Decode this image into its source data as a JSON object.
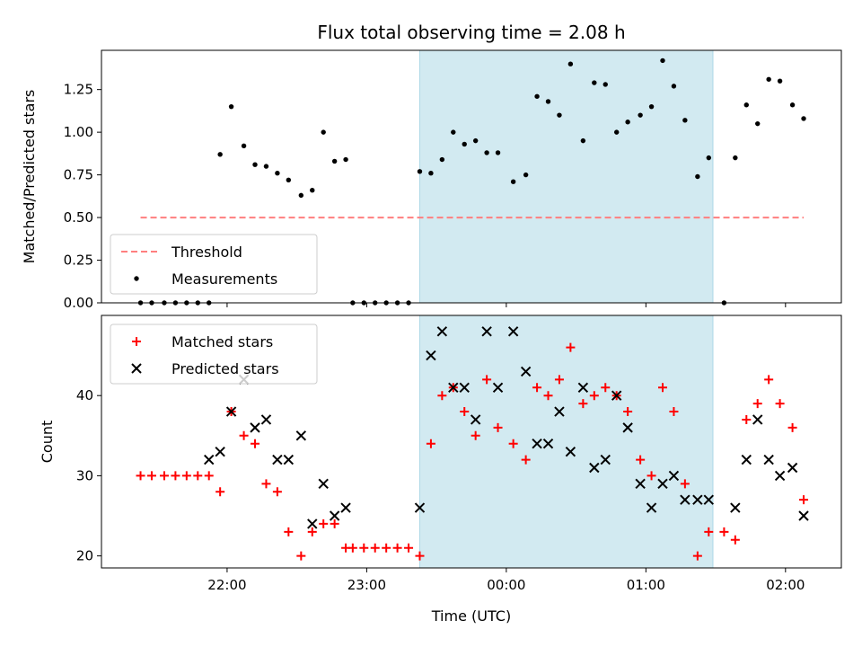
{
  "chart_data": [
    {
      "type": "scatter",
      "title": "Flux total observing time = 2.08 h",
      "xlabel": "",
      "ylabel": "Matched/Predicted stars",
      "ylim": [
        0,
        1.48
      ],
      "yticks": [
        0.0,
        0.25,
        0.5,
        0.75,
        1.0,
        1.25
      ],
      "ytick_labels": [
        "0.00",
        "0.25",
        "0.50",
        "0.75",
        "1.00",
        "1.25"
      ],
      "xlim": [
        -2.9,
        2.4
      ],
      "xticks": [
        -2.0,
        -1.0,
        0.0,
        1.0,
        2.0
      ],
      "shaded_region": [
        -0.62,
        1.48
      ],
      "shaded_color": "#add8e6",
      "legend_position": "lower-left",
      "threshold": {
        "name": "Threshold",
        "value": 0.5,
        "x_range": [
          -2.62,
          2.13
        ],
        "color": "#ff7f7f",
        "style": "dashed"
      },
      "series": [
        {
          "name": "Measurements",
          "color": "#000000",
          "marker": "dot",
          "x": [
            -2.62,
            -2.54,
            -2.45,
            -2.37,
            -2.29,
            -2.21,
            -2.13,
            -2.05,
            -1.97,
            -1.88,
            -1.8,
            -1.72,
            -1.64,
            -1.56,
            -1.47,
            -1.39,
            -1.31,
            -1.23,
            -1.15,
            -1.1,
            -1.02,
            -0.94,
            -0.86,
            -0.78,
            -0.7,
            -0.62,
            -0.54,
            -0.46,
            -0.38,
            -0.3,
            -0.22,
            -0.14,
            -0.06,
            0.05,
            0.14,
            0.22,
            0.3,
            0.38,
            0.46,
            0.55,
            0.63,
            0.71,
            0.79,
            0.87,
            0.96,
            1.04,
            1.12,
            1.2,
            1.28,
            1.37,
            1.45,
            1.56,
            1.64,
            1.72,
            1.8,
            1.88,
            1.96,
            2.05,
            2.13
          ],
          "y": [
            0,
            0,
            0,
            0,
            0,
            0,
            0,
            0.87,
            1.15,
            0.92,
            0.81,
            0.8,
            0.76,
            0.72,
            0.63,
            0.66,
            1.0,
            0.83,
            0.84,
            0,
            0,
            0,
            0,
            0,
            0,
            0.77,
            0.76,
            0.84,
            1.0,
            0.93,
            0.95,
            0.88,
            0.88,
            0.71,
            0.75,
            1.21,
            1.18,
            1.1,
            1.4,
            0.95,
            1.29,
            1.28,
            1.0,
            1.06,
            1.1,
            1.15,
            1.42,
            1.27,
            1.07,
            0.74,
            0.85,
            0,
            0.85,
            1.16,
            1.05,
            1.31,
            1.3,
            1.16,
            1.08
          ]
        }
      ]
    },
    {
      "type": "scatter",
      "title": "",
      "xlabel": "Time (UTC)",
      "ylabel": "Count",
      "ylim": [
        18.5,
        50
      ],
      "yticks": [
        20,
        30,
        40
      ],
      "ytick_labels": [
        "20",
        "30",
        "40"
      ],
      "xlim": [
        -2.9,
        2.4
      ],
      "xticks": [
        -2.0,
        -1.0,
        0.0,
        1.0,
        2.0
      ],
      "xtick_labels": [
        "22:00",
        "23:00",
        "00:00",
        "01:00",
        "02:00"
      ],
      "shaded_region": [
        -0.62,
        1.48
      ],
      "shaded_color": "#add8e6",
      "legend_position": "top-left",
      "series": [
        {
          "name": "Matched stars",
          "color": "#ff0000",
          "marker": "plus",
          "x": [
            -2.62,
            -2.54,
            -2.45,
            -2.37,
            -2.29,
            -2.21,
            -2.13,
            -2.05,
            -1.97,
            -1.88,
            -1.8,
            -1.72,
            -1.64,
            -1.56,
            -1.47,
            -1.39,
            -1.31,
            -1.23,
            -1.15,
            -1.1,
            -1.02,
            -0.94,
            -0.86,
            -0.78,
            -0.7,
            -0.62,
            -0.54,
            -0.46,
            -0.38,
            -0.3,
            -0.22,
            -0.14,
            -0.06,
            0.05,
            0.14,
            0.22,
            0.3,
            0.38,
            0.46,
            0.55,
            0.63,
            0.71,
            0.79,
            0.87,
            0.96,
            1.04,
            1.12,
            1.2,
            1.28,
            1.37,
            1.45,
            1.56,
            1.64,
            1.72,
            1.8,
            1.88,
            1.96,
            2.05,
            2.13
          ],
          "y": [
            30,
            30,
            30,
            30,
            30,
            30,
            30,
            28,
            38,
            35,
            34,
            29,
            28,
            23,
            20,
            23,
            24,
            24,
            21,
            21,
            21,
            21,
            21,
            21,
            21,
            20,
            34,
            40,
            41,
            38,
            35,
            42,
            36,
            34,
            32,
            41,
            40,
            42,
            46,
            39,
            40,
            41,
            40,
            38,
            32,
            30,
            41,
            38,
            29,
            20,
            23,
            23,
            22,
            37,
            39,
            42,
            39,
            36,
            27
          ]
        },
        {
          "name": "Predicted stars",
          "color": "#000000",
          "marker": "x",
          "x": [
            -2.13,
            -2.05,
            -1.97,
            -1.88,
            -1.8,
            -1.72,
            -1.64,
            -1.56,
            -1.47,
            -1.39,
            -1.31,
            -1.23,
            -1.15,
            -0.62,
            -0.54,
            -0.46,
            -0.38,
            -0.3,
            -0.22,
            -0.14,
            -0.06,
            0.05,
            0.14,
            0.22,
            0.3,
            0.38,
            0.46,
            0.55,
            0.63,
            0.71,
            0.79,
            0.87,
            0.96,
            1.04,
            1.12,
            1.2,
            1.28,
            1.37,
            1.45,
            1.64,
            1.72,
            1.8,
            1.88,
            1.96,
            2.05,
            2.13
          ],
          "y": [
            32,
            33,
            38,
            42,
            36,
            37,
            32,
            32,
            35,
            24,
            29,
            25,
            26,
            26,
            45,
            48,
            41,
            41,
            37,
            48,
            41,
            48,
            43,
            34,
            34,
            38,
            33,
            41,
            31,
            32,
            40,
            36,
            29,
            26,
            29,
            30,
            27,
            27,
            27,
            26,
            32,
            37,
            32,
            30,
            31,
            25
          ]
        }
      ]
    }
  ]
}
